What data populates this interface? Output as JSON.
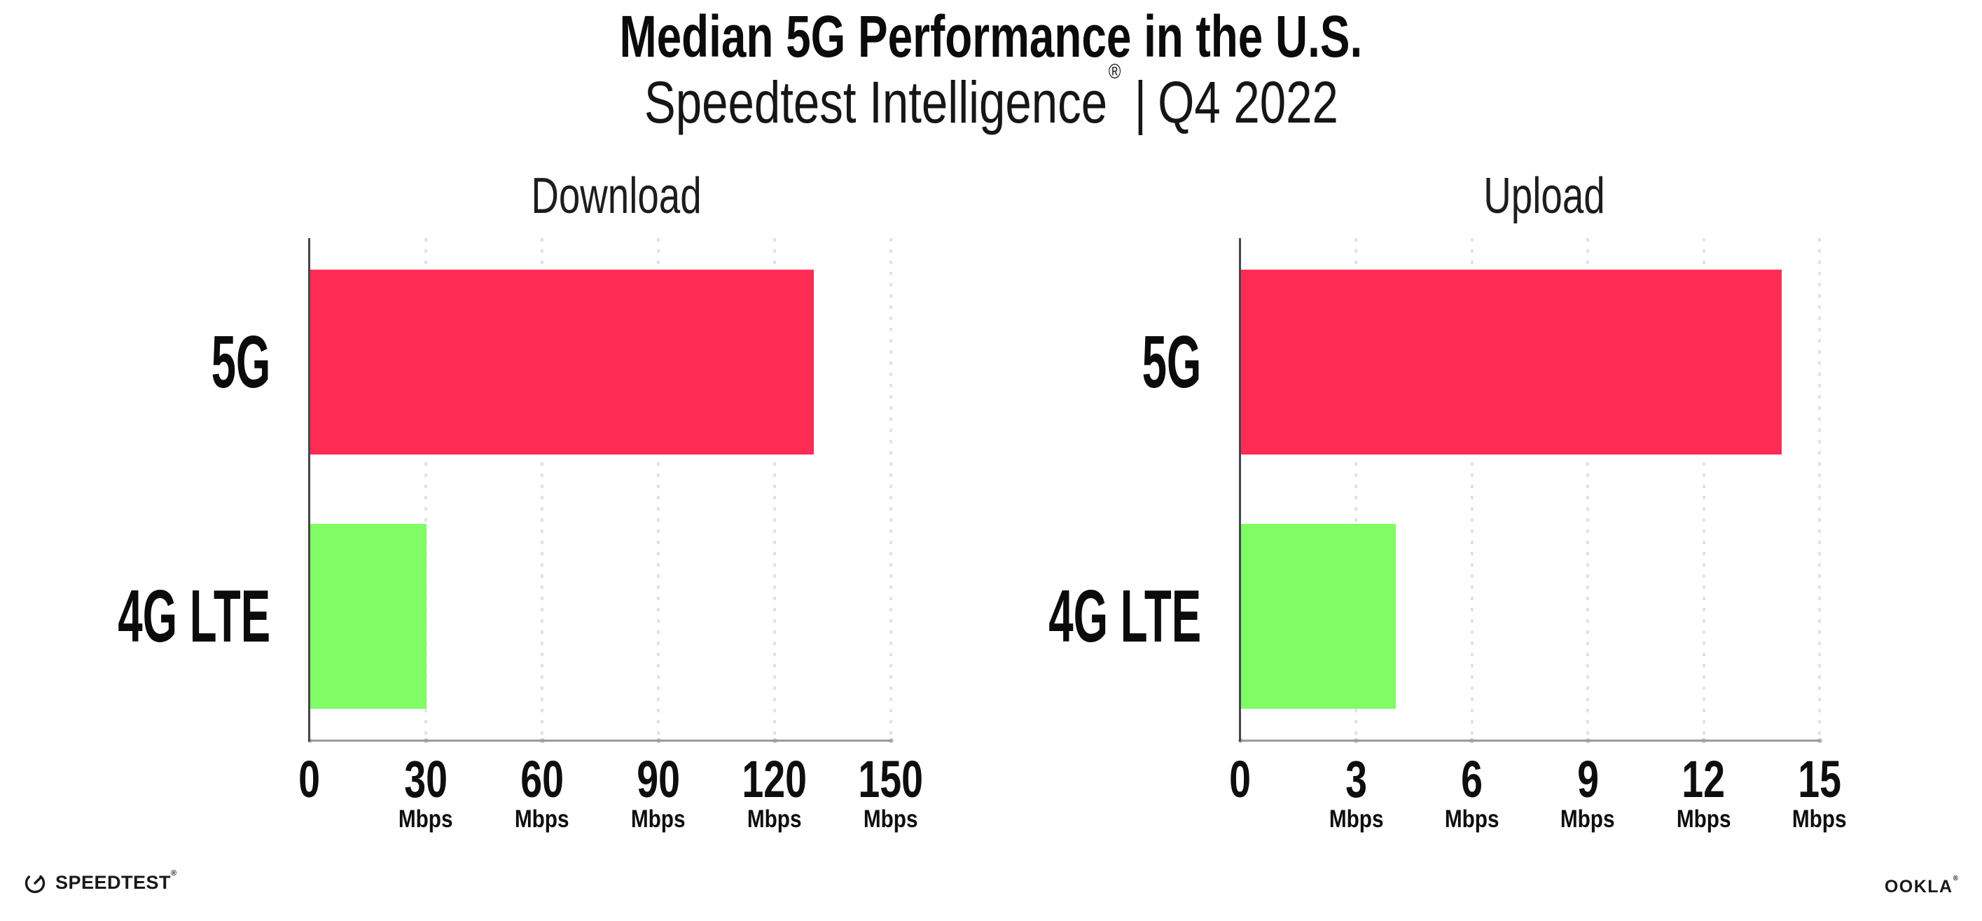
{
  "header": {
    "title": "Median 5G Performance in the U.S.",
    "subtitle": {
      "product": "Speedtest Intelligence",
      "registered_mark": "®",
      "separator": "|",
      "period": "Q4 2022"
    }
  },
  "chart_data": [
    {
      "type": "bar",
      "orientation": "horizontal",
      "title": "Download",
      "categories": [
        "5G",
        "4G LTE"
      ],
      "values": [
        130,
        30
      ],
      "unit": "Mbps",
      "xticks": [
        0,
        30,
        60,
        90,
        120,
        150
      ],
      "xlim": [
        0,
        150
      ],
      "colors": [
        "#FF2D55",
        "#80FC64"
      ],
      "grid": "dotted vertical gridlines at each tick",
      "legend_position": "none"
    },
    {
      "type": "bar",
      "orientation": "horizontal",
      "title": "Upload",
      "categories": [
        "5G",
        "4G LTE"
      ],
      "values": [
        14,
        4
      ],
      "unit": "Mbps",
      "xticks": [
        0,
        3,
        6,
        9,
        12,
        15
      ],
      "xlim": [
        0,
        15
      ],
      "colors": [
        "#FF2D55",
        "#80FC64"
      ],
      "grid": "dotted vertical gridlines at each tick",
      "legend_position": "none"
    }
  ],
  "footer": {
    "speedtest_logo_text": "SPEEDTEST",
    "speedtest_mark": "®",
    "ookla_logo_text": "OOKLA",
    "ookla_mark": "®"
  },
  "style": {
    "bar_red": "#FF2D55",
    "bar_green": "#80FC64",
    "gridline": "#E2E2EE",
    "axis_y": "#45454E",
    "axis_x": "#9A9AA2",
    "tick_dot": "#C6C6D6",
    "text": "#111111",
    "background": "#FFFFFF"
  }
}
